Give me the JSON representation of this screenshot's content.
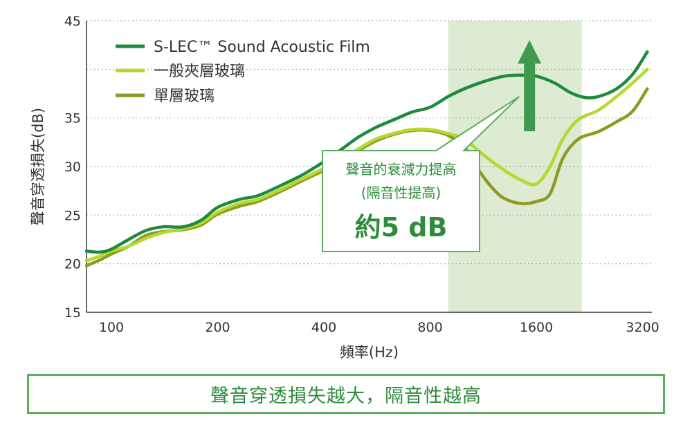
{
  "colors": {
    "film": "#1f8a3d",
    "laminated": "#b5d92c",
    "single": "#8f9a22",
    "highlight": "#dcebd1",
    "arrow": "#3f9a4f",
    "callout_border": "#5cae5a",
    "callout_text": "#2e8b3a",
    "big_text": "#2e8b3a"
  },
  "chart_data": {
    "type": "line",
    "ylabel": "聲音穿透損失(dB)",
    "xlabel": "頻率(Hz)",
    "x_scale": "log",
    "xlim": [
      85,
      3400
    ],
    "ylim": [
      15,
      45
    ],
    "y_ticks": [
      15,
      20,
      25,
      30,
      35,
      40,
      45
    ],
    "y_tick_labels": [
      "15",
      "20",
      "25",
      "30",
      "35",
      "",
      "45"
    ],
    "x_ticks": [
      100,
      200,
      400,
      800,
      1600,
      3200
    ],
    "x_tick_labels": [
      "100",
      "200",
      "400",
      "800",
      "1600",
      "3200"
    ],
    "grid": "horizontal dotted",
    "highlight_band": [
      900,
      2150
    ],
    "series": [
      {
        "name": "S-LEC™ Sound Acoustic Film",
        "color_key": "film",
        "x": [
          85,
          93,
          100,
          112,
          125,
          140,
          160,
          180,
          200,
          230,
          260,
          300,
          350,
          400,
          450,
          500,
          560,
          630,
          710,
          800,
          900,
          1000,
          1150,
          1300,
          1450,
          1600,
          1800,
          2000,
          2200,
          2400,
          2700,
          3000,
          3300
        ],
        "y": [
          21.3,
          21.2,
          21.5,
          22.5,
          23.4,
          23.8,
          23.8,
          24.5,
          25.8,
          26.6,
          27.0,
          28.0,
          29.2,
          30.5,
          31.8,
          33.0,
          34.0,
          34.8,
          35.6,
          36.1,
          37.2,
          38.0,
          38.8,
          39.3,
          39.4,
          39.3,
          38.6,
          37.6,
          37.1,
          37.2,
          38.0,
          39.5,
          41.8
        ]
      },
      {
        "name": "一般夾層玻璃",
        "color_key": "laminated",
        "x": [
          85,
          93,
          100,
          112,
          125,
          140,
          160,
          180,
          200,
          230,
          260,
          300,
          350,
          400,
          450,
          500,
          560,
          630,
          710,
          800,
          900,
          1000,
          1150,
          1300,
          1450,
          1600,
          1750,
          1900,
          2100,
          2400,
          2700,
          3000,
          3300
        ],
        "y": [
          20.3,
          20.8,
          21.3,
          21.8,
          22.6,
          23.2,
          23.6,
          24.2,
          25.3,
          26.2,
          26.6,
          27.6,
          28.8,
          29.8,
          30.8,
          31.8,
          32.8,
          33.4,
          33.8,
          33.8,
          33.4,
          32.8,
          31.0,
          29.6,
          28.6,
          28.2,
          30.0,
          32.8,
          34.8,
          35.8,
          37.2,
          38.6,
          40.0
        ]
      },
      {
        "name": "單層玻璃",
        "color_key": "single",
        "x": [
          85,
          93,
          100,
          112,
          125,
          140,
          160,
          180,
          200,
          230,
          260,
          300,
          350,
          400,
          450,
          500,
          560,
          630,
          710,
          800,
          900,
          1000,
          1100,
          1200,
          1300,
          1450,
          1600,
          1750,
          1900,
          2100,
          2400,
          2700,
          3000,
          3300
        ],
        "y": [
          19.8,
          20.4,
          21.0,
          21.8,
          22.9,
          23.3,
          23.5,
          24.0,
          25.1,
          25.9,
          26.4,
          27.4,
          28.6,
          29.6,
          30.6,
          31.6,
          32.6,
          33.3,
          33.7,
          33.7,
          33.2,
          32.0,
          29.6,
          27.8,
          26.7,
          26.2,
          26.4,
          27.2,
          30.8,
          32.8,
          33.6,
          34.6,
          35.7,
          38.0
        ]
      }
    ]
  },
  "legend": {
    "items": [
      {
        "label": "S-LEC™ Sound Acoustic Film",
        "color_key": "film"
      },
      {
        "label": "一般夾層玻璃",
        "color_key": "laminated"
      },
      {
        "label": "單層玻璃",
        "color_key": "single"
      }
    ]
  },
  "callout": {
    "line1": "聲音的衰減力提高",
    "line2": "(隔音性提高)",
    "big": "約5 dB"
  },
  "footer": {
    "text": "聲音穿透損失越大，隔音性越高"
  }
}
